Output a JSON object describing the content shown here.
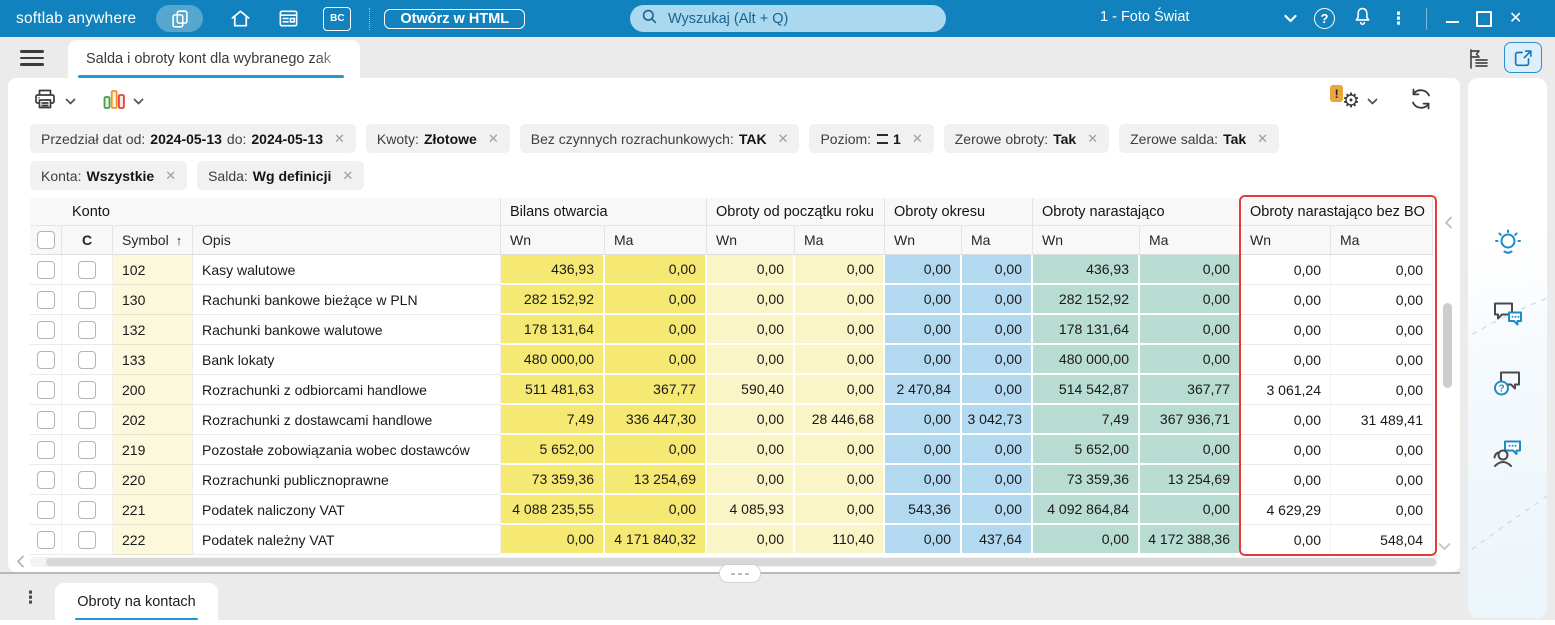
{
  "icons": {
    "kebab": "⋮",
    "help": "?",
    "sort_asc": "↑",
    "close": "✕",
    "scroll_left": "‹",
    "scroll_up": "⌃",
    "scroll_down": "⌄",
    "bc": "BC"
  },
  "topbar": {
    "brand": "softlab anywhere",
    "open_html_button": "Otwórz w HTML",
    "search_placeholder": "Wyszukaj (Alt + Q)",
    "company": "1 - Foto Świat"
  },
  "tabstrip": {
    "active_tab": "Salda i obroty kont dla wybranego zak"
  },
  "filters": {
    "rows": [
      [
        {
          "id": "przedzial-dat",
          "segments": [
            {
              "t": "Przedział dat  od:",
              "b": false
            },
            {
              "t": "2024-05-13",
              "b": true
            },
            {
              "t": "do:",
              "b": false
            },
            {
              "t": "2024-05-13",
              "b": true
            }
          ]
        },
        {
          "id": "kwoty",
          "segments": [
            {
              "t": "Kwoty:",
              "b": false
            },
            {
              "t": "Złotowe",
              "b": true
            }
          ]
        },
        {
          "id": "bez-czynnych-rozrachunkowych",
          "segments": [
            {
              "t": "Bez czynnych rozrachunkowych:",
              "b": false
            },
            {
              "t": "TAK",
              "b": true
            }
          ]
        },
        {
          "id": "poziom",
          "segments": [
            {
              "t": "Poziom:",
              "b": false
            },
            {
              "eq": true
            },
            {
              "t": "1",
              "b": true
            }
          ]
        },
        {
          "id": "zerowe-obroty",
          "segments": [
            {
              "t": "Zerowe obroty:",
              "b": false
            },
            {
              "t": "Tak",
              "b": true
            }
          ]
        },
        {
          "id": "zerowe-salda",
          "segments": [
            {
              "t": "Zerowe salda:",
              "b": false
            },
            {
              "t": "Tak",
              "b": true
            }
          ]
        }
      ],
      [
        {
          "id": "konta",
          "segments": [
            {
              "t": "Konta:",
              "b": false
            },
            {
              "t": "Wszystkie",
              "b": true
            }
          ]
        },
        {
          "id": "salda",
          "segments": [
            {
              "t": "Salda:",
              "b": false
            },
            {
              "t": "Wg definicji",
              "b": true
            }
          ]
        }
      ]
    ]
  },
  "table": {
    "groups": [
      {
        "label": "Konto",
        "span": 4,
        "highlighted": false
      },
      {
        "label": "Bilans otwarcia",
        "span": 2,
        "highlighted": false
      },
      {
        "label": "Obroty od początku roku",
        "span": 2,
        "highlighted": false
      },
      {
        "label": "Obroty okresu",
        "span": 2,
        "highlighted": false
      },
      {
        "label": "Obroty narastająco",
        "span": 2,
        "highlighted": false
      },
      {
        "label": "Obroty narastająco bez BO",
        "span": 2,
        "highlighted": true
      }
    ],
    "subheader": {
      "c": "C",
      "symbol": "Symbol",
      "opis": "Opis",
      "wn": "Wn",
      "ma": "Ma"
    },
    "rows": [
      [
        "102",
        "Kasy walutowe",
        "436,93",
        "0,00",
        "0,00",
        "0,00",
        "0,00",
        "0,00",
        "436,93",
        "0,00",
        "0,00",
        "0,00"
      ],
      [
        "130",
        "Rachunki bankowe bieżące w PLN",
        "282 152,92",
        "0,00",
        "0,00",
        "0,00",
        "0,00",
        "0,00",
        "282 152,92",
        "0,00",
        "0,00",
        "0,00"
      ],
      [
        "132",
        "Rachunki bankowe walutowe",
        "178 131,64",
        "0,00",
        "0,00",
        "0,00",
        "0,00",
        "0,00",
        "178 131,64",
        "0,00",
        "0,00",
        "0,00"
      ],
      [
        "133",
        "Bank lokaty",
        "480 000,00",
        "0,00",
        "0,00",
        "0,00",
        "0,00",
        "0,00",
        "480 000,00",
        "0,00",
        "0,00",
        "0,00"
      ],
      [
        "200",
        "Rozrachunki z odbiorcami handlowe",
        "511 481,63",
        "367,77",
        "590,40",
        "0,00",
        "2 470,84",
        "0,00",
        "514 542,87",
        "367,77",
        "3 061,24",
        "0,00"
      ],
      [
        "202",
        "Rozrachunki z dostawcami handlowe",
        "7,49",
        "336 447,30",
        "0,00",
        "28 446,68",
        "0,00",
        "3 042,73",
        "7,49",
        "367 936,71",
        "0,00",
        "31 489,41"
      ],
      [
        "219",
        "Pozostałe zobowiązania wobec dostawców",
        "5 652,00",
        "0,00",
        "0,00",
        "0,00",
        "0,00",
        "0,00",
        "5 652,00",
        "0,00",
        "0,00",
        "0,00"
      ],
      [
        "220",
        "Rozrachunki publicznoprawne",
        "73 359,36",
        "13 254,69",
        "0,00",
        "0,00",
        "0,00",
        "0,00",
        "73 359,36",
        "13 254,69",
        "0,00",
        "0,00"
      ],
      [
        "221",
        "Podatek naliczony VAT",
        "4 088 235,55",
        "0,00",
        "4 085,93",
        "0,00",
        "543,36",
        "0,00",
        "4 092 864,84",
        "0,00",
        "4 629,29",
        "0,00"
      ],
      [
        "222",
        "Podatek należny VAT",
        "0,00",
        "4 171 840,32",
        "0,00",
        "110,40",
        "0,00",
        "437,64",
        "0,00",
        "4 172 388,36",
        "0,00",
        "548,04"
      ]
    ]
  },
  "bottom": {
    "tab": "Obroty na kontach"
  },
  "colors": {
    "topbar_blue": "#1182BD",
    "accent_blue": "#1E9AD6",
    "highlight_red": "#E23B3B",
    "bilans_otwarcia": "#F6E973",
    "obroty_od_poczatku_roku": "#FAF5C6",
    "obroty_okresu": "#B3D9F1",
    "obroty_narastajaco": "#B8DCD2",
    "symbol_tint": "#FBF8DC",
    "warning_badge": "#E9A63C"
  }
}
